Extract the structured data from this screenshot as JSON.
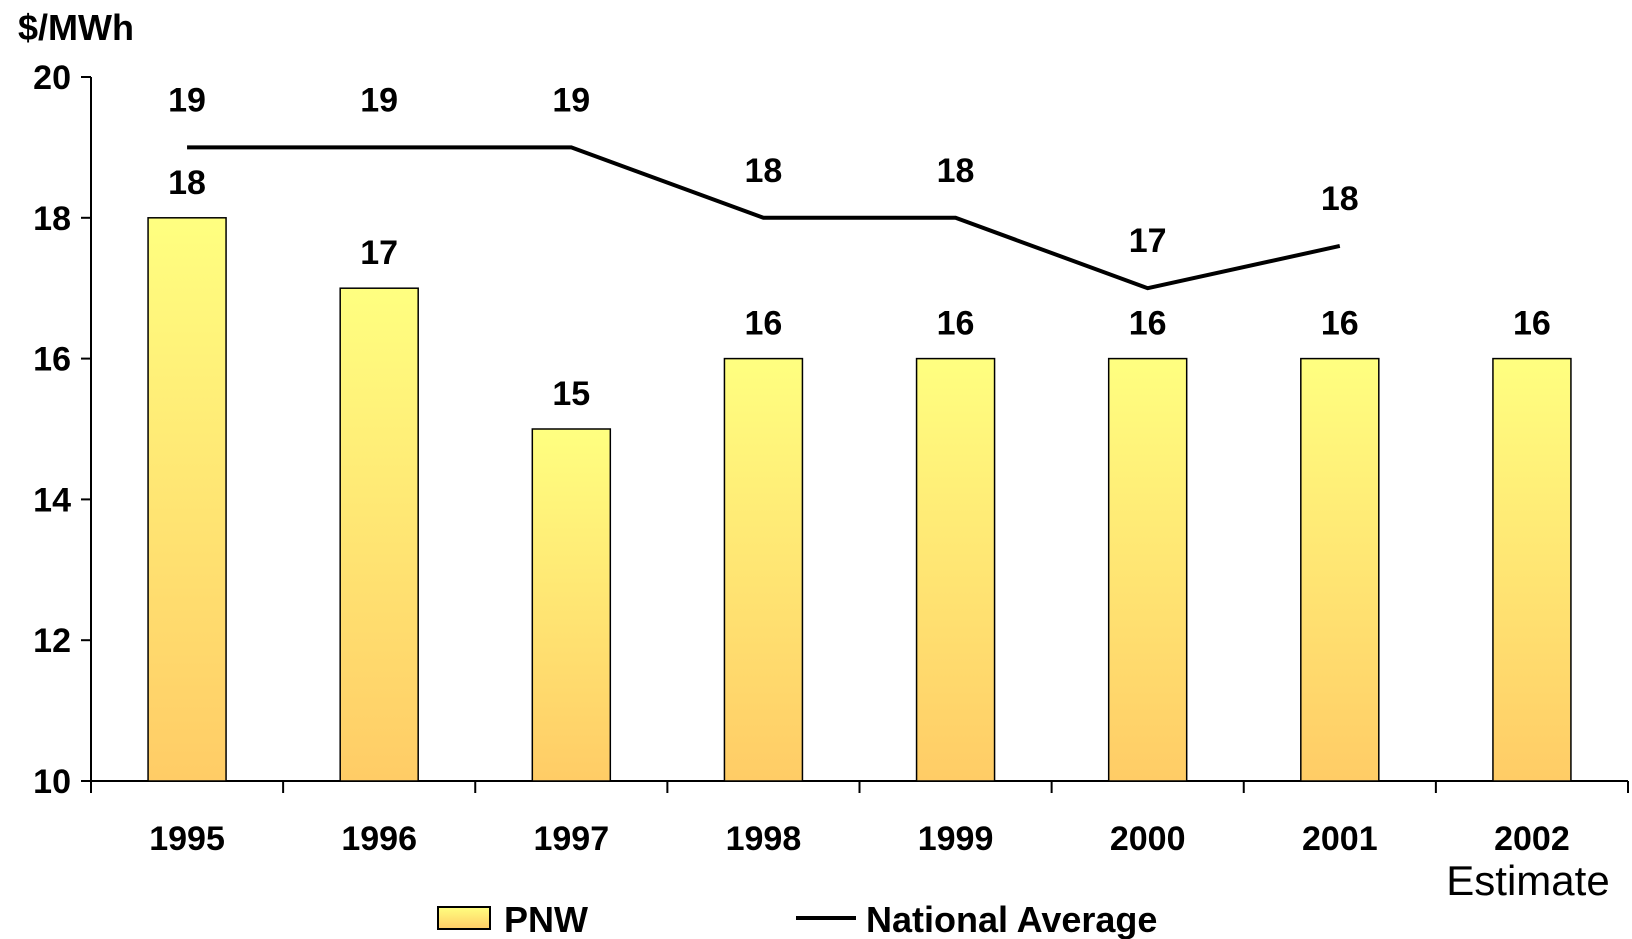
{
  "chart_data": {
    "type": "bar",
    "ylabel": "$/MWh",
    "ylim": [
      10,
      20
    ],
    "yticks": [
      "10",
      "12",
      "14",
      "16",
      "18",
      "20"
    ],
    "categories": [
      "1995",
      "1996",
      "1997",
      "1998",
      "1999",
      "2000",
      "2001",
      "2002"
    ],
    "category_note": "Estimate",
    "grid": false,
    "legend_position": "bottom",
    "colors": {
      "bar_top": "#FFFF80",
      "bar_bottom": "#FFCC66",
      "bar_border": "#000000",
      "line": "#000000"
    },
    "series": [
      {
        "name": "PNW",
        "type": "bar",
        "values": [
          18,
          17,
          15,
          16,
          16,
          16,
          16,
          16
        ],
        "labels": [
          "18",
          "17",
          "15",
          "16",
          "16",
          "16",
          "16",
          "16"
        ]
      },
      {
        "name": "National Average",
        "type": "line",
        "values": [
          19,
          19,
          19,
          18,
          18,
          17,
          17.6,
          null
        ],
        "labels": [
          "19",
          "19",
          "19",
          "18",
          "18",
          "17",
          "18",
          null
        ]
      }
    ]
  }
}
